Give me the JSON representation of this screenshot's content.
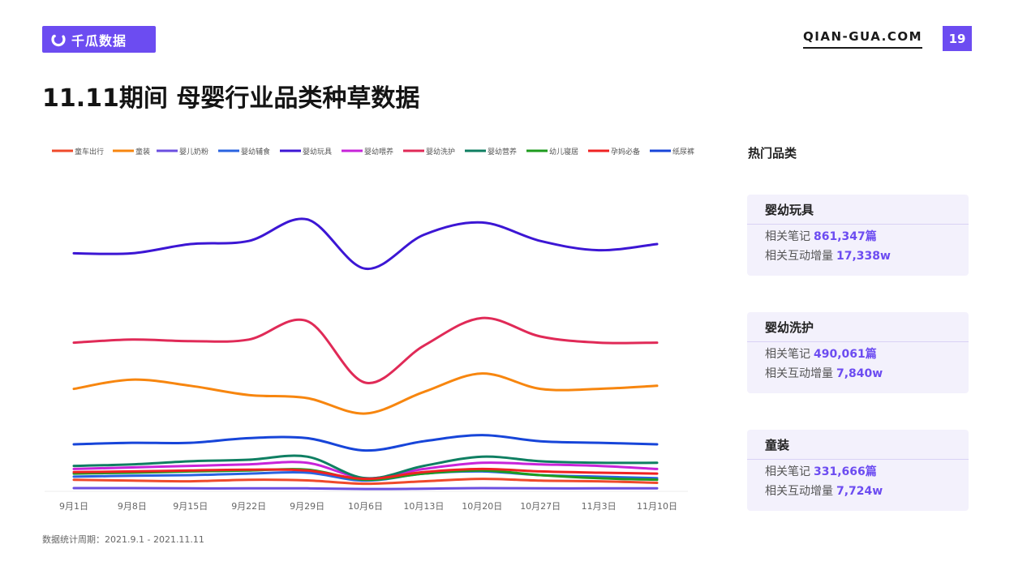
{
  "brand": {
    "logo_text": "千瓜数据",
    "site": "QIAN-GUA.COM",
    "page_number": "19"
  },
  "title": "11.11期间 母婴行业品类种草数据",
  "chart_data": {
    "type": "line",
    "title": "",
    "xlabel": "",
    "ylabel": "",
    "ylim": [
      0,
      100
    ],
    "grid": false,
    "legend": "top",
    "x": [
      "9月1日",
      "9月8日",
      "9月15日",
      "9月22日",
      "9月29日",
      "10月6日",
      "10月13日",
      "10月20日",
      "10月27日",
      "11月3日",
      "11月10日"
    ],
    "series": [
      {
        "name": "童车出行",
        "color": "#ef4a2b",
        "values": [
          3.5,
          3.2,
          3.0,
          3.5,
          3.3,
          2.2,
          3.0,
          3.8,
          3.2,
          3.0,
          2.5
        ]
      },
      {
        "name": "童装",
        "color": "#f7860f",
        "values": [
          33,
          36,
          34,
          31,
          30,
          25,
          32,
          38,
          33,
          33,
          34
        ]
      },
      {
        "name": "婴儿奶粉",
        "color": "#6b4fe0",
        "values": [
          0.8,
          0.8,
          0.7,
          0.7,
          0.7,
          0.5,
          0.6,
          0.8,
          0.7,
          0.7,
          0.7
        ]
      },
      {
        "name": "婴幼辅食",
        "color": "#2a63e0",
        "values": [
          4.5,
          4.8,
          5.0,
          5.5,
          5.8,
          3.2,
          5.5,
          6.2,
          5.0,
          4.5,
          4.0
        ]
      },
      {
        "name": "婴幼玩具",
        "color": "#3c16d4",
        "values": [
          77,
          77,
          80,
          81,
          88,
          72,
          83,
          87,
          81,
          78,
          80
        ]
      },
      {
        "name": "婴幼喂养",
        "color": "#c724d9",
        "values": [
          7,
          7.5,
          8,
          8.5,
          9,
          4,
          7,
          9,
          8.5,
          8,
          7
        ]
      },
      {
        "name": "婴幼洗护",
        "color": "#e02a57",
        "values": [
          48,
          49,
          48.5,
          49,
          55,
          35,
          47,
          56,
          50,
          48,
          48
        ]
      },
      {
        "name": "婴幼营养",
        "color": "#0f7f62",
        "values": [
          8,
          8.5,
          9.5,
          10,
          11,
          4,
          8,
          11,
          9.5,
          9,
          9
        ]
      },
      {
        "name": "幼儿寝居",
        "color": "#1e9b1e",
        "values": [
          5.5,
          5.8,
          6.2,
          6.5,
          6.8,
          3.5,
          5.5,
          6.5,
          5.0,
          4.0,
          3.5
        ]
      },
      {
        "name": "孕妈必备",
        "color": "#ef2222",
        "values": [
          6,
          6.2,
          6.5,
          6.8,
          6.5,
          3.8,
          6,
          7,
          6.2,
          5.8,
          5.5
        ]
      },
      {
        "name": "纸尿裤",
        "color": "#1745d9",
        "values": [
          15,
          15.5,
          15.5,
          17,
          17,
          13,
          16,
          18,
          16,
          15.5,
          15
        ]
      }
    ]
  },
  "sidebar": {
    "heading": "热门品类",
    "cards": [
      {
        "name": "婴幼玩具",
        "notes_label": "相关笔记",
        "notes_value": "861,347篇",
        "inter_label": "相关互动增量",
        "inter_value": "17,338w"
      },
      {
        "name": "婴幼洗护",
        "notes_label": "相关笔记",
        "notes_value": "490,061篇",
        "inter_label": "相关互动增量",
        "inter_value": "7,840w"
      },
      {
        "name": "童装",
        "notes_label": "相关笔记",
        "notes_value": "331,666篇",
        "inter_label": "相关互动增量",
        "inter_value": "7,724w"
      }
    ]
  },
  "footer": "数据统计周期：2021.9.1 - 2021.11.11",
  "colors": {
    "accent": "#6c4cf1",
    "card_bg": "#f3f1fc"
  }
}
